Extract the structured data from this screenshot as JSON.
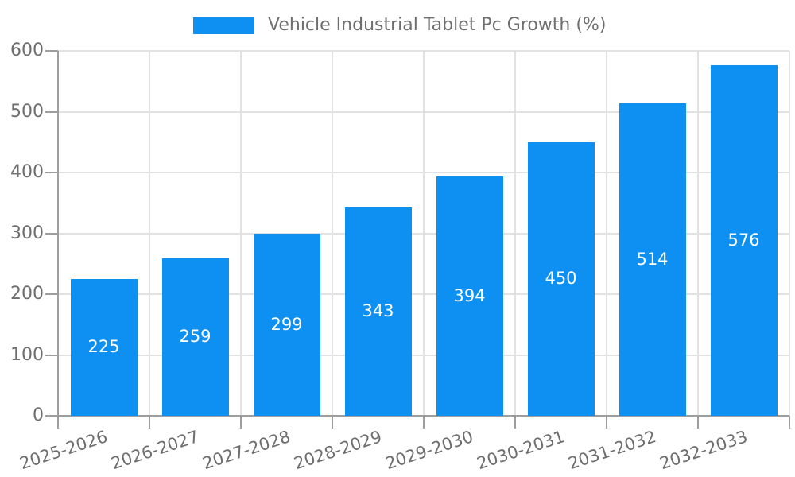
{
  "legend": {
    "label": "Vehicle Industrial Tablet Pc Growth (%)"
  },
  "colors": {
    "bar": "#0e90f2",
    "axis": "#9e9e9e",
    "grid": "#e2e2e2",
    "text": "#6e6e6e",
    "value_label": "#ffffff",
    "background": "#ffffff"
  },
  "chart_data": {
    "type": "bar",
    "title": "Vehicle Industrial Tablet Pc Growth (%)",
    "categories": [
      "2025-2026",
      "2026-2027",
      "2027-2028",
      "2028-2029",
      "2029-2030",
      "2030-2031",
      "2031-2032",
      "2032-2033"
    ],
    "values": [
      225,
      259,
      299,
      343,
      394,
      450,
      514,
      576
    ],
    "xlabel": "",
    "ylabel": "",
    "ylim": [
      0,
      600
    ],
    "yticks": [
      0,
      100,
      200,
      300,
      400,
      500,
      600
    ],
    "grid": true,
    "legend_position": "top-center",
    "value_labels": "inside-center",
    "x_label_rotation_deg": -18
  }
}
